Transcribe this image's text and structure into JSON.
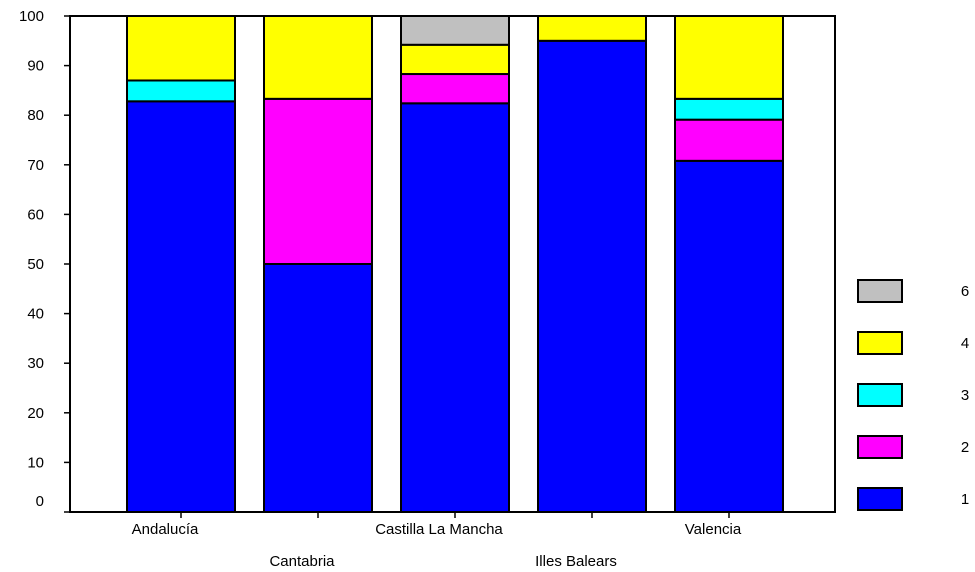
{
  "chart_data": {
    "type": "bar",
    "stacked": true,
    "title": "",
    "xlabel": "",
    "ylabel": "",
    "ylim": [
      0,
      100
    ],
    "yticks": [
      0,
      10,
      20,
      30,
      40,
      50,
      60,
      70,
      80,
      90,
      100
    ],
    "grid": false,
    "legend_position": "right",
    "categories": [
      "Andalucía",
      "Cantabria",
      "Castilla La Mancha",
      "Illes Balears",
      "Valencia"
    ],
    "series": [
      {
        "name": "1",
        "color": "#0000ff",
        "values": [
          82.8,
          50.0,
          82.4,
          95.0,
          70.8
        ]
      },
      {
        "name": "2",
        "color": "#ff00ff",
        "values": [
          0,
          33.3,
          5.9,
          0,
          8.3
        ]
      },
      {
        "name": "3",
        "color": "#00ffff",
        "values": [
          4.2,
          0,
          0,
          0,
          4.2
        ]
      },
      {
        "name": "4",
        "color": "#ffff00",
        "values": [
          13.0,
          16.7,
          5.9,
          5.0,
          16.7
        ]
      },
      {
        "name": "6",
        "color": "#c0c0c0",
        "values": [
          0,
          0,
          5.8,
          0,
          0
        ]
      }
    ],
    "legend_order": [
      "6",
      "4",
      "3",
      "2",
      "1"
    ]
  }
}
